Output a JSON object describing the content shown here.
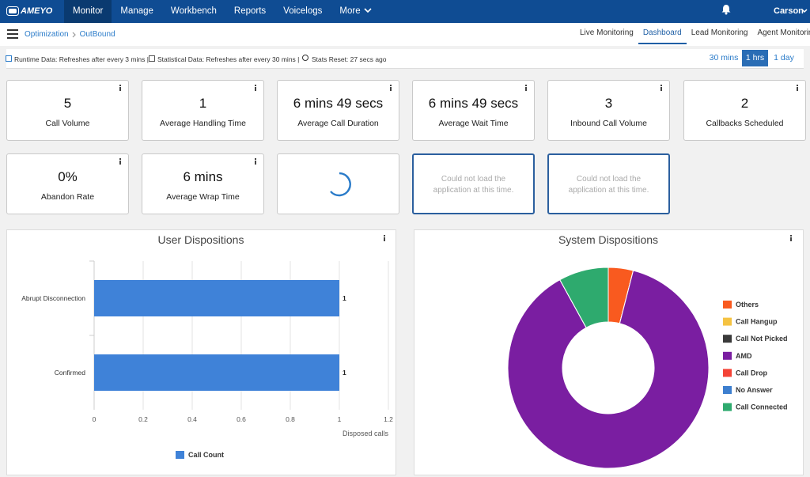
{
  "nav": {
    "logo": "AMEYO",
    "menu": [
      "Monitor",
      "Manage",
      "Workbench",
      "Reports",
      "Voicelogs",
      "More"
    ],
    "active": 0,
    "user": "Carson"
  },
  "breadcrumb": [
    "Optimization",
    "OutBound"
  ],
  "tabs": [
    "Live Monitoring",
    "Dashboard",
    "Lead Monitoring",
    "Agent Monitoring"
  ],
  "active_tab": 1,
  "status": [
    "Runtime Data: Refreshes after every 3 mins |",
    "Statistical Data: Refreshes after every 30 mins |",
    "Stats Reset: 27 secs ago"
  ],
  "time_ranges": [
    "30 mins",
    "1 hrs",
    "1 day"
  ],
  "active_range": 1,
  "cards": [
    {
      "value": "5",
      "label": "Call Volume"
    },
    {
      "value": "1",
      "label": "Average Handling Time"
    },
    {
      "value": "6 mins 49 secs",
      "label": "Average Call Duration"
    },
    {
      "value": "6 mins 49 secs",
      "label": "Average Wait Time"
    },
    {
      "value": "3",
      "label": "Inbound Call Volume"
    },
    {
      "value": "2",
      "label": "Callbacks Scheduled"
    },
    {
      "value": "0%",
      "label": "Abandon Rate"
    },
    {
      "value": "6 mins",
      "label": "Average Wrap Time"
    }
  ],
  "error_cards": [
    "Could not load the application at this time.",
    "Could not load the application at this time."
  ],
  "chart_data": [
    {
      "type": "bar",
      "orientation": "horizontal",
      "title": "User Dispositions",
      "categories": [
        "Abrupt Disconnection",
        "Confirmed"
      ],
      "series": [
        {
          "name": "Call Count",
          "color": "#3f82d8",
          "values": [
            1,
            1
          ]
        }
      ],
      "xlim": [
        0,
        1.2
      ],
      "xticks": [
        0,
        0.2,
        0.4,
        0.6,
        0.8,
        1,
        1.2
      ],
      "x_label": "Disposed calls",
      "grid": true
    },
    {
      "type": "pie",
      "donut": true,
      "title": "System Dispositions",
      "categories": [
        "Others",
        "Call Hangup",
        "Call Not Picked",
        "AMD",
        "Call Drop",
        "No Answer",
        "Call Connected"
      ],
      "colors": [
        "#f95a1f",
        "#f5c342",
        "#3a3a3a",
        "#7a1ea1",
        "#f44336",
        "#3d7fcf",
        "#2eaa6e"
      ],
      "values": [
        4,
        0,
        0,
        88,
        0,
        0,
        8
      ],
      "legend": "right"
    }
  ]
}
